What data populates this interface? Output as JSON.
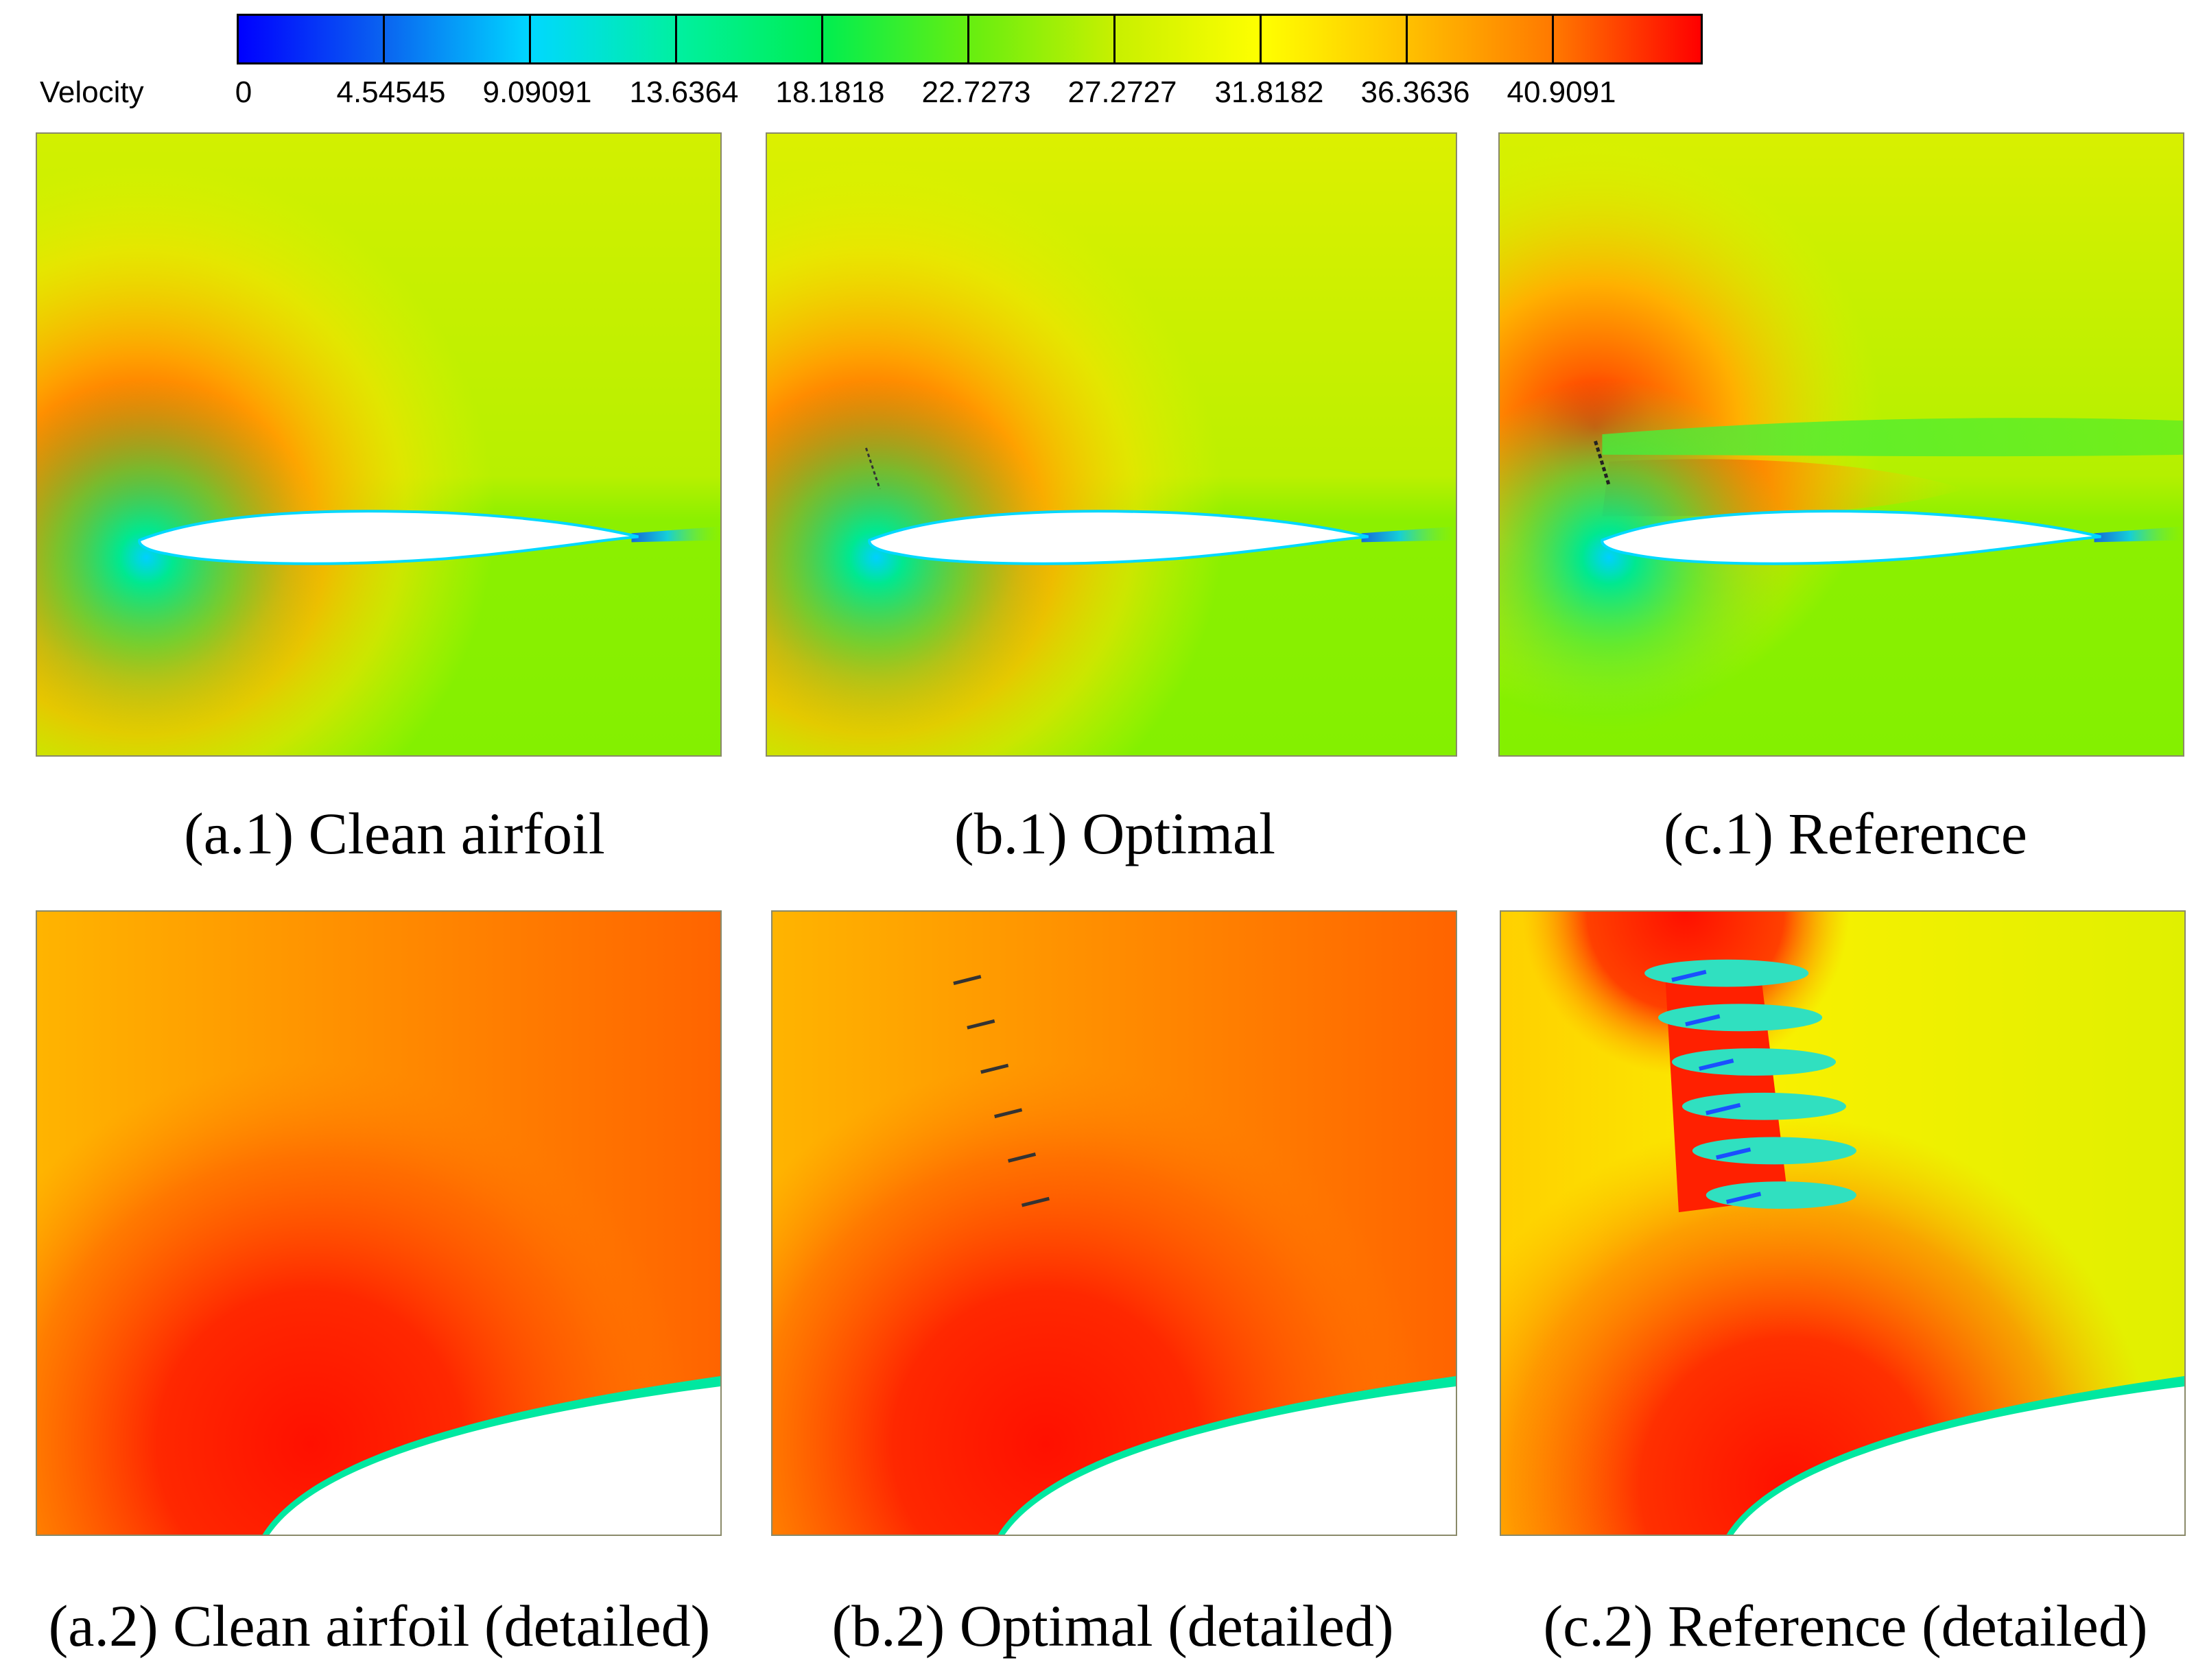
{
  "colorbar": {
    "title": "Velocity",
    "labels": [
      "0",
      "4.54545",
      "9.09091",
      "13.6364",
      "18.1818",
      "22.7273",
      "27.2727",
      "31.8182",
      "36.3636",
      "40.9091"
    ],
    "min_color": "#0000ff",
    "max_color": "#ff0000"
  },
  "panels": [
    {
      "caption": "(a.1) Clean airfoil"
    },
    {
      "caption": "(b.1) Optimal"
    },
    {
      "caption": "(c.1) Reference"
    },
    {
      "caption": "(a.2) Clean airfoil (detailed)"
    },
    {
      "caption": "(b.2) Optimal (detailed)"
    },
    {
      "caption": "(c.2) Reference (detailed)"
    }
  ],
  "colors": {
    "freestream": "#b4f000",
    "lower_side": "#7cf000",
    "suction_peak": "#ff1400",
    "wake": "#1a78ff",
    "stagnation": "#00c8ff",
    "airfoil_body": "#ffffff"
  }
}
